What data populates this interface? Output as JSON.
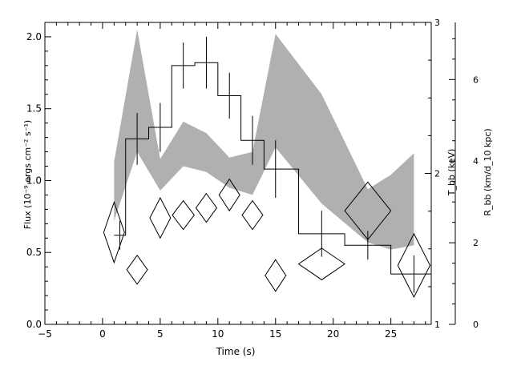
{
  "chart_data": {
    "type": "line",
    "xlabel": "Time (s)",
    "ylabel": "Flux (10⁻⁹ ergs cm⁻² s⁻¹)",
    "ylabel_right1": "T_bb (keV)",
    "ylabel_right2": "R_bb (km/d_10 kpc)",
    "xlim": [
      -5,
      28.5
    ],
    "ylim": [
      0,
      2.1
    ],
    "right1_lim": [
      1,
      3
    ],
    "right2_lim": [
      0,
      7.4
    ],
    "x_ticks": [
      -5,
      0,
      5,
      10,
      15,
      20,
      25
    ],
    "x_tick_labels": [
      "−5",
      "0",
      "5",
      "10",
      "15",
      "20",
      "25"
    ],
    "y_ticks": [
      0,
      0.5,
      1.0,
      1.5,
      2.0
    ],
    "y_tick_labels": [
      "0.0",
      "0.5",
      "1.0",
      "1.5",
      "2.0"
    ],
    "right1_ticks": [
      1,
      2,
      3
    ],
    "right1_tick_labels": [
      "1",
      "2",
      "3"
    ],
    "right2_ticks": [
      0,
      2,
      4,
      6
    ],
    "right2_tick_labels": [
      "0",
      "2",
      "4",
      "6"
    ],
    "series": [
      {
        "kind": "step_flux",
        "bins": [
          {
            "x0": 1,
            "x1": 2,
            "y": 0.62,
            "xc": 1.5,
            "err": 0.1
          },
          {
            "x0": 2,
            "x1": 4,
            "y": 1.29,
            "xc": 3,
            "err": 0.18
          },
          {
            "x0": 4,
            "x1": 6,
            "y": 1.37,
            "xc": 5,
            "err": 0.17
          },
          {
            "x0": 6,
            "x1": 8,
            "y": 1.8,
            "xc": 7,
            "err": 0.16
          },
          {
            "x0": 8,
            "x1": 10,
            "y": 1.82,
            "xc": 9,
            "err": 0.18
          },
          {
            "x0": 10,
            "x1": 12,
            "y": 1.59,
            "xc": 11,
            "err": 0.16
          },
          {
            "x0": 12,
            "x1": 14,
            "y": 1.28,
            "xc": 13,
            "err": 0.17
          },
          {
            "x0": 14,
            "x1": 17,
            "y": 1.08,
            "xc": 15,
            "err": 0.2
          },
          {
            "x0": 17,
            "x1": 21,
            "y": 0.63,
            "xc": 19,
            "err": 0.16
          },
          {
            "x0": 21,
            "x1": 25,
            "y": 0.55,
            "xc": 23,
            "err": 0.1
          },
          {
            "x0": 25,
            "x1": 28.5,
            "y": 0.35,
            "xc": 27,
            "err": 0.13
          }
        ]
      },
      {
        "kind": "band_kT",
        "points": [
          {
            "x": 1,
            "low": 0.72,
            "high": 1.13
          },
          {
            "x": 3,
            "low": 1.2,
            "high": 2.05
          },
          {
            "x": 5,
            "low": 0.93,
            "high": 1.15
          },
          {
            "x": 7,
            "low": 1.1,
            "high": 1.41
          },
          {
            "x": 9,
            "low": 1.06,
            "high": 1.33
          },
          {
            "x": 11,
            "low": 0.95,
            "high": 1.16
          },
          {
            "x": 13,
            "low": 0.9,
            "high": 1.2
          },
          {
            "x": 15,
            "low": 1.23,
            "high": 2.02
          },
          {
            "x": 19,
            "low": 0.84,
            "high": 1.6
          },
          {
            "x": 23,
            "low": 0.57,
            "high": 0.94
          },
          {
            "x": 25,
            "low": 0.52,
            "high": 1.04
          },
          {
            "x": 27,
            "low": 0.55,
            "high": 1.19
          }
        ]
      },
      {
        "kind": "diamonds_radius",
        "points": [
          {
            "x": 1,
            "y": 0.64,
            "dx": 0.9,
            "dy": 0.21
          },
          {
            "x": 3,
            "y": 0.38,
            "dx": 0.9,
            "dy": 0.1
          },
          {
            "x": 5,
            "y": 0.74,
            "dx": 0.9,
            "dy": 0.14
          },
          {
            "x": 7,
            "y": 0.76,
            "dx": 0.95,
            "dy": 0.1
          },
          {
            "x": 9,
            "y": 0.81,
            "dx": 0.9,
            "dy": 0.1
          },
          {
            "x": 11,
            "y": 0.9,
            "dx": 0.9,
            "dy": 0.11
          },
          {
            "x": 13,
            "y": 0.76,
            "dx": 0.9,
            "dy": 0.1
          },
          {
            "x": 15,
            "y": 0.34,
            "dx": 0.9,
            "dy": 0.11
          },
          {
            "x": 19,
            "y": 0.42,
            "dx": 2,
            "dy": 0.11
          },
          {
            "x": 23,
            "y": 0.79,
            "dx": 2,
            "dy": 0.2
          },
          {
            "x": 27,
            "y": 0.41,
            "dx": 1.4,
            "dy": 0.22
          }
        ]
      }
    ]
  }
}
